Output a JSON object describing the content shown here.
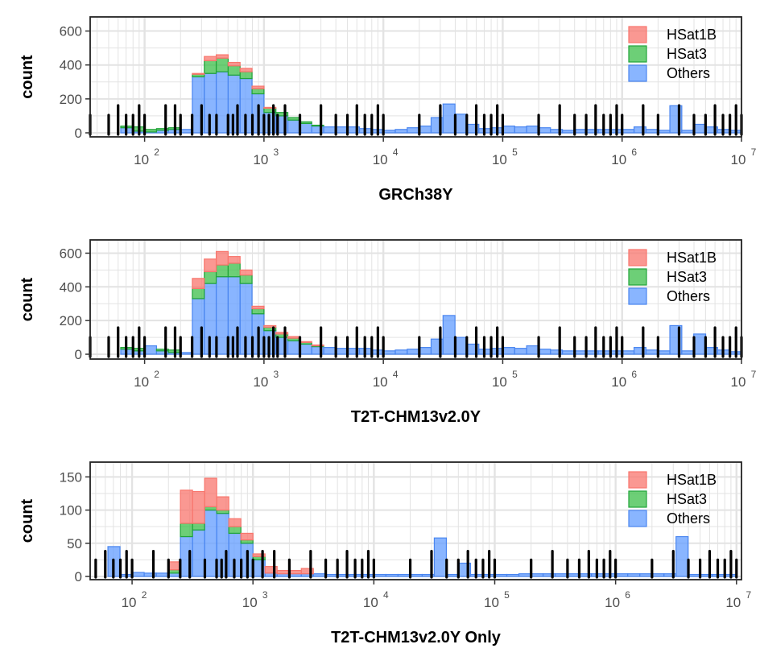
{
  "colors": {
    "HSat1B_fill": "#f8766d",
    "HSat1B_stroke": "#f8766d",
    "HSat3_fill": "#3cbf4a",
    "HSat3_stroke": "#21a43a",
    "Others_fill": "#619cff",
    "Others_stroke": "#4a86f0",
    "rug": "#000000",
    "grid": "#e3e3e3"
  },
  "chart_data": [
    {
      "type": "histogram",
      "title": "",
      "xlabel": "GRCh38Y",
      "ylabel": "count",
      "x_scale": "log10",
      "xlim": [
        35,
        10000000
      ],
      "ylim": [
        0,
        650
      ],
      "yticks": [
        0,
        200,
        400,
        600
      ],
      "ytick_labels": [
        "0",
        "200",
        "400",
        "600"
      ],
      "xticks": [
        2,
        3,
        4,
        5,
        6,
        7
      ],
      "xtick_labels": [
        "10",
        "10",
        "10",
        "10",
        "10",
        "10"
      ],
      "xtick_exponents": [
        "2",
        "3",
        "4",
        "5",
        "6",
        "7"
      ],
      "legend": [
        "HSat1B",
        "HSat3",
        "Others"
      ],
      "legend_position": "top-right",
      "grid": true,
      "bin_edges_log10": [
        1.8,
        1.9,
        2.0,
        2.1,
        2.2,
        2.3,
        2.4,
        2.5,
        2.6,
        2.7,
        2.8,
        2.9,
        3.0,
        3.1,
        3.2,
        3.3,
        3.4,
        3.5,
        3.6,
        3.7,
        3.8,
        3.9,
        4.0,
        4.1,
        4.2,
        4.3,
        4.4,
        4.5,
        4.6,
        4.7,
        4.8,
        4.9,
        5.0,
        5.1,
        5.2,
        5.3,
        5.4,
        5.5,
        5.6,
        5.7,
        5.8,
        5.9,
        6.0,
        6.1,
        6.2,
        6.3,
        6.4,
        6.5,
        6.6,
        6.7,
        6.8,
        6.9,
        7.0
      ],
      "series": [
        {
          "name": "Others",
          "values": [
            30,
            10,
            5,
            15,
            20,
            20,
            330,
            350,
            360,
            340,
            320,
            230,
            120,
            100,
            75,
            55,
            40,
            35,
            35,
            35,
            25,
            20,
            15,
            20,
            30,
            40,
            90,
            170,
            110,
            50,
            25,
            30,
            40,
            35,
            40,
            30,
            20,
            15,
            20,
            20,
            20,
            20,
            20,
            35,
            20,
            15,
            160,
            15,
            50,
            35,
            20,
            15
          ]
        },
        {
          "name": "HSat3",
          "values": [
            10,
            25,
            15,
            10,
            10,
            0,
            15,
            75,
            80,
            55,
            40,
            30,
            25,
            20,
            15,
            10,
            5,
            0,
            0,
            0,
            0,
            0,
            0,
            0,
            0,
            0,
            0,
            0,
            0,
            0,
            0,
            0,
            0,
            0,
            0,
            0,
            0,
            0,
            0,
            0,
            0,
            0,
            0,
            0,
            0,
            0,
            0,
            0,
            0,
            0,
            0,
            0
          ]
        },
        {
          "name": "HSat1B",
          "values": [
            0,
            0,
            0,
            0,
            0,
            0,
            5,
            25,
            20,
            20,
            20,
            15,
            5,
            0,
            0,
            0,
            0,
            0,
            0,
            0,
            0,
            0,
            0,
            0,
            0,
            0,
            0,
            0,
            0,
            0,
            0,
            0,
            0,
            0,
            0,
            0,
            0,
            0,
            0,
            0,
            0,
            0,
            0,
            0,
            0,
            0,
            0,
            0,
            0,
            0,
            0,
            0
          ]
        }
      ],
      "rug": [
        35,
        50,
        60,
        70,
        80,
        90,
        100,
        150,
        180,
        200,
        250,
        300,
        350,
        400,
        500,
        550,
        600,
        700,
        800,
        900,
        1000,
        1100,
        1200,
        1300,
        1500,
        2000,
        3000,
        4000,
        5000,
        6000,
        7000,
        8000,
        9000,
        10000,
        20000,
        30000,
        40000,
        50000,
        60000,
        70000,
        80000,
        90000,
        100000,
        200000,
        300000,
        400000,
        500000,
        600000,
        700000,
        800000,
        900000,
        1000000,
        1500000,
        2000000,
        3000000,
        4000000,
        5000000,
        6000000,
        7000000,
        8000000,
        9000000,
        10000000
      ]
    },
    {
      "type": "histogram",
      "title": "",
      "xlabel": "T2T-CHM13v2.0Y",
      "ylabel": "count",
      "x_scale": "log10",
      "xlim": [
        35,
        10000000
      ],
      "ylim": [
        0,
        650
      ],
      "yticks": [
        0,
        200,
        400,
        600
      ],
      "ytick_labels": [
        "0",
        "200",
        "400",
        "600"
      ],
      "xticks": [
        2,
        3,
        4,
        5,
        6,
        7
      ],
      "xtick_labels": [
        "10",
        "10",
        "10",
        "10",
        "10",
        "10"
      ],
      "xtick_exponents": [
        "2",
        "3",
        "4",
        "5",
        "6",
        "7"
      ],
      "legend": [
        "HSat1B",
        "HSat3",
        "Others"
      ],
      "legend_position": "top-right",
      "grid": true,
      "bin_edges_log10": [
        1.8,
        1.9,
        2.0,
        2.1,
        2.2,
        2.3,
        2.4,
        2.5,
        2.6,
        2.7,
        2.8,
        2.9,
        3.0,
        3.1,
        3.2,
        3.3,
        3.4,
        3.5,
        3.6,
        3.7,
        3.8,
        3.9,
        4.0,
        4.1,
        4.2,
        4.3,
        4.4,
        4.5,
        4.6,
        4.7,
        4.8,
        4.9,
        5.0,
        5.1,
        5.2,
        5.3,
        5.4,
        5.5,
        5.6,
        5.7,
        5.8,
        5.9,
        6.0,
        6.1,
        6.2,
        6.3,
        6.4,
        6.5,
        6.6,
        6.7,
        6.8,
        6.9,
        7.0
      ],
      "series": [
        {
          "name": "Others",
          "values": [
            30,
            20,
            50,
            20,
            10,
            10,
            330,
            420,
            460,
            460,
            420,
            240,
            140,
            100,
            80,
            60,
            45,
            40,
            35,
            35,
            35,
            25,
            20,
            25,
            30,
            40,
            90,
            230,
            100,
            60,
            30,
            35,
            40,
            35,
            50,
            30,
            25,
            20,
            20,
            20,
            20,
            20,
            20,
            40,
            25,
            20,
            170,
            20,
            120,
            40,
            25,
            15
          ]
        },
        {
          "name": "HSat3",
          "values": [
            10,
            15,
            0,
            10,
            15,
            0,
            60,
            70,
            70,
            80,
            50,
            30,
            20,
            20,
            15,
            10,
            5,
            0,
            0,
            0,
            0,
            0,
            0,
            0,
            0,
            0,
            0,
            0,
            0,
            0,
            0,
            0,
            0,
            0,
            0,
            0,
            0,
            0,
            0,
            0,
            0,
            0,
            0,
            0,
            0,
            0,
            0,
            0,
            0,
            0,
            0,
            0
          ]
        },
        {
          "name": "HSat1B",
          "values": [
            0,
            0,
            0,
            0,
            0,
            0,
            60,
            75,
            80,
            40,
            30,
            15,
            10,
            10,
            10,
            5,
            5,
            0,
            0,
            0,
            0,
            0,
            0,
            0,
            0,
            0,
            0,
            0,
            0,
            0,
            0,
            0,
            0,
            0,
            0,
            0,
            0,
            0,
            0,
            0,
            0,
            0,
            0,
            0,
            0,
            0,
            0,
            0,
            0,
            0,
            0,
            0
          ]
        }
      ],
      "rug": [
        35,
        50,
        60,
        70,
        80,
        90,
        100,
        150,
        180,
        200,
        250,
        300,
        350,
        400,
        500,
        550,
        600,
        700,
        800,
        900,
        1000,
        1100,
        1200,
        1300,
        1500,
        2000,
        3000,
        4000,
        5000,
        6000,
        7000,
        8000,
        9000,
        10000,
        20000,
        30000,
        40000,
        50000,
        60000,
        70000,
        80000,
        90000,
        100000,
        200000,
        300000,
        400000,
        500000,
        600000,
        700000,
        800000,
        900000,
        1000000,
        1500000,
        2000000,
        3000000,
        4000000,
        5000000,
        6000000,
        7000000,
        8000000,
        9000000,
        10000000
      ]
    },
    {
      "type": "histogram",
      "title": "",
      "xlabel": "T2T-CHM13v2.0Y Only",
      "ylabel": "count",
      "x_scale": "log10",
      "xlim": [
        45,
        11000000
      ],
      "ylim": [
        0,
        165
      ],
      "yticks": [
        0,
        50,
        100,
        150
      ],
      "ytick_labels": [
        "0",
        "50",
        "100",
        "150"
      ],
      "xticks": [
        2,
        3,
        4,
        5,
        6,
        7
      ],
      "xtick_labels": [
        "10",
        "10",
        "10",
        "10",
        "10",
        "10"
      ],
      "xtick_exponents": [
        "2",
        "3",
        "4",
        "5",
        "6",
        "7"
      ],
      "legend": [
        "HSat1B",
        "HSat3",
        "Others"
      ],
      "legend_position": "top-right",
      "grid": true,
      "bin_edges_log10": [
        1.8,
        1.9,
        2.0,
        2.1,
        2.2,
        2.3,
        2.4,
        2.5,
        2.6,
        2.7,
        2.8,
        2.9,
        3.0,
        3.1,
        3.2,
        3.3,
        3.4,
        3.5,
        3.6,
        3.7,
        3.8,
        3.9,
        4.0,
        4.1,
        4.2,
        4.3,
        4.4,
        4.5,
        4.6,
        4.7,
        4.8,
        4.9,
        5.0,
        5.1,
        5.2,
        5.3,
        5.4,
        5.5,
        5.6,
        5.7,
        5.8,
        5.9,
        6.0,
        6.1,
        6.2,
        6.3,
        6.4,
        6.5,
        6.6,
        6.7,
        6.8,
        6.9,
        7.0
      ],
      "series": [
        {
          "name": "Others",
          "values": [
            45,
            3,
            6,
            5,
            5,
            5,
            60,
            70,
            100,
            95,
            65,
            50,
            25,
            5,
            4,
            4,
            4,
            4,
            3,
            3,
            3,
            3,
            3,
            3,
            3,
            3,
            3,
            58,
            3,
            20,
            3,
            3,
            3,
            3,
            4,
            4,
            4,
            4,
            4,
            4,
            4,
            4,
            4,
            4,
            4,
            4,
            4,
            60,
            3,
            3,
            3,
            3
          ]
        },
        {
          "name": "HSat3",
          "values": [
            0,
            0,
            0,
            0,
            0,
            5,
            20,
            10,
            5,
            5,
            10,
            5,
            5,
            0,
            0,
            0,
            0,
            0,
            0,
            0,
            0,
            0,
            0,
            0,
            0,
            0,
            0,
            0,
            0,
            0,
            0,
            0,
            0,
            0,
            0,
            0,
            0,
            0,
            0,
            0,
            0,
            0,
            0,
            0,
            0,
            0,
            0,
            0,
            0,
            0,
            0,
            0
          ]
        },
        {
          "name": "HSat1B",
          "values": [
            0,
            0,
            0,
            0,
            0,
            12,
            50,
            48,
            43,
            20,
            12,
            10,
            4,
            10,
            5,
            5,
            8,
            0,
            0,
            0,
            0,
            0,
            0,
            0,
            0,
            0,
            0,
            0,
            0,
            0,
            0,
            0,
            0,
            0,
            0,
            0,
            0,
            0,
            0,
            0,
            0,
            0,
            0,
            0,
            0,
            0,
            0,
            0,
            0,
            0,
            0,
            0
          ]
        }
      ],
      "rug": [
        50,
        60,
        70,
        80,
        90,
        100,
        150,
        200,
        250,
        300,
        400,
        500,
        550,
        600,
        700,
        800,
        900,
        1000,
        1200,
        1500,
        2000,
        3000,
        4000,
        5000,
        6000,
        7000,
        8000,
        9000,
        10000,
        20000,
        30000,
        40000,
        50000,
        60000,
        70000,
        80000,
        90000,
        100000,
        200000,
        300000,
        400000,
        500000,
        600000,
        700000,
        800000,
        900000,
        1000000,
        2000000,
        3000000,
        4000000,
        5000000,
        6000000,
        7000000,
        8000000,
        9000000,
        10000000
      ]
    }
  ]
}
